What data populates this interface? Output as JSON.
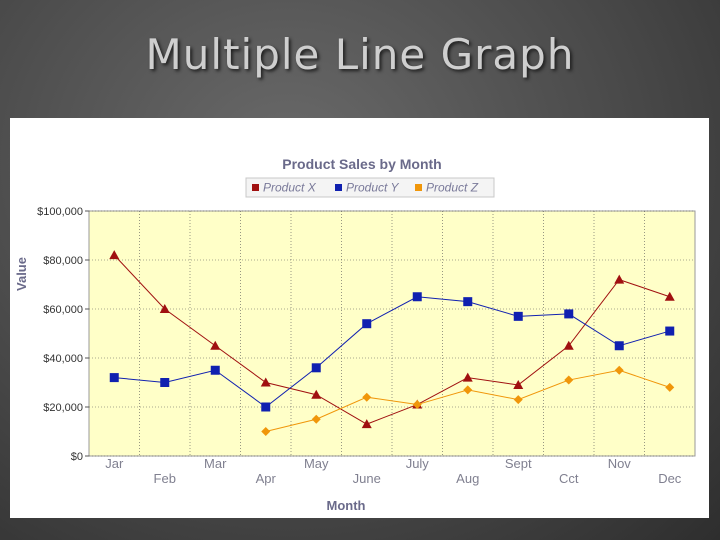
{
  "slide": {
    "title": "Multiple Line Graph"
  },
  "chart_data": {
    "type": "line",
    "title": "Product Sales by Month",
    "xlabel": "Month",
    "ylabel": "Value",
    "categories": [
      "Jar",
      "Feb",
      "Mar",
      "Apr",
      "May",
      "June",
      "July",
      "Aug",
      "Sept",
      "Cct",
      "Nov",
      "Dec"
    ],
    "ylim": [
      0,
      100000
    ],
    "yticks": [
      "$0",
      "$20,000",
      "$40,000",
      "$60,000",
      "$80,000",
      "$100,000"
    ],
    "grid": true,
    "legend_position": "top",
    "series": [
      {
        "name": "Product X",
        "color": "#a01010",
        "marker": "triangle",
        "values": [
          82000,
          60000,
          45000,
          30000,
          25000,
          13000,
          21000,
          32000,
          29000,
          45000,
          72000,
          65000
        ]
      },
      {
        "name": "Product Y",
        "color": "#1020b0",
        "marker": "square",
        "values": [
          32000,
          30000,
          35000,
          20000,
          36000,
          54000,
          65000,
          63000,
          57000,
          58000,
          45000,
          51000
        ]
      },
      {
        "name": "Product Z",
        "color": "#f0960a",
        "marker": "diamond",
        "values": [
          null,
          null,
          null,
          10000,
          15000,
          24000,
          21000,
          27000,
          23000,
          31000,
          35000,
          28000
        ]
      }
    ]
  }
}
